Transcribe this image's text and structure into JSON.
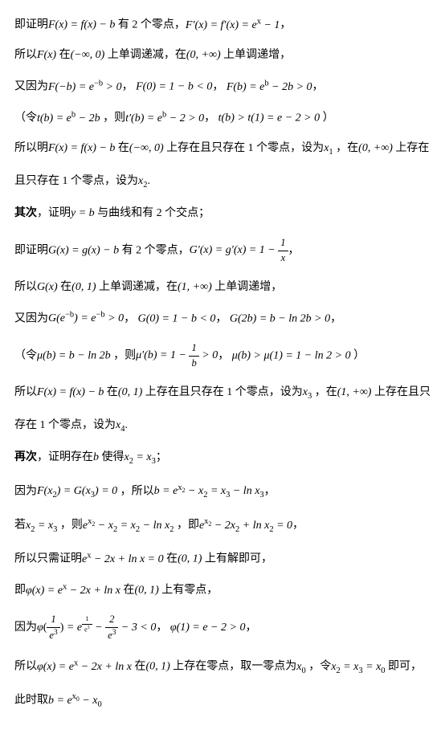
{
  "lines": {
    "l1": "即证明",
    "l1b": "有 2 个零点，",
    "l2": "所以",
    "l2b": "在",
    "l2c": "上单调递减，在",
    "l2d": "上单调递增，",
    "l3": "又因为",
    "l4": "（令",
    "l4b": "，则",
    "l4c": "）",
    "l5": "所以明",
    "l5b": "在",
    "l5c": "上存在且只存在 1 个零点，设为",
    "l5d": "，在",
    "l5e": "上存在",
    "l6": "且只存在 1 个零点，设为",
    "l7a": "其次",
    "l7b": "，证明",
    "l7c": "与曲线和有 2 个交点；",
    "l8": "即证明",
    "l8b": "有 2 个零点，",
    "l9": "所以",
    "l9b": "在",
    "l9c": "上单调递减，在",
    "l9d": "上单调递增，",
    "l10": "又因为",
    "l11": "（令",
    "l11b": "，则",
    "l11c": "）",
    "l12": "所以",
    "l12b": "在",
    "l12c": "上存在且只存在 1 个零点，设为",
    "l12d": "，在",
    "l12e": "上存在且只",
    "l13": "存在 1 个零点，设为",
    "l14a": "再次",
    "l14b": "，证明存在",
    "l14c": "使得",
    "l15": "因为",
    "l15b": "，所以",
    "l16": "若",
    "l16b": "，则",
    "l16c": "，即",
    "l17": "所以只需证明",
    "l17b": "在",
    "l17c": "上有解即可，",
    "l18": "即",
    "l18b": "在",
    "l18c": "上有零点，",
    "l19": "因为",
    "l20": "所以",
    "l20b": "在",
    "l20c": "上存在零点，取一零点为",
    "l20d": "，令",
    "l20e": "即可，",
    "l21": "此时取"
  },
  "math": {
    "Fx_eq": "F(x) = f(x) − b",
    "Fprime": "F′(x) = f′(x) = e",
    "minus1": " − 1",
    "Fx": "F(x)",
    "neginf0": "(−∞, 0)",
    "zeroinf": "(0, +∞)",
    "Fneg_b": "F(−b) = e",
    "supnegb": "−b",
    "gt0": " > 0",
    "F0": "F(0) = 1 − b < 0",
    "Fb": "F(b) = e",
    "m2b": " − 2b > 0",
    "tb": "t(b) = e",
    "m2b2": " − 2b",
    "tprime": "t′(b) = e",
    "m2": " − 2 > 0",
    "tbgt": "t(b) > t(1) = e − 2 > 0",
    "x1": "x",
    "x2": "x",
    "yb": "y = b",
    "Gx_eq": "G(x) = g(x) − b",
    "Gprime": "G′(x) = g′(x) = 1 − ",
    "Gx": "G(x)",
    "int01": "(0, 1)",
    "int1inf": "(1, +∞)",
    "Genegb": "G(e",
    "closep": ") = e",
    "G0": "G(0) = 1 − b < 0",
    "G2b": "G(2b) = b − ln 2b > 0",
    "mub": "μ(b) = b − ln 2b",
    "muprime": "μ′(b) = 1 − ",
    "mubgt": "μ(b) > μ(1) = 1 − ln 2 > 0",
    "x3": "x",
    "x4": "x",
    "b": "b",
    "x2eqx3": "x",
    "eq": " = x",
    "FGeq0": "F(x",
    "eqG": ") = G(x",
    "eq0": ") = 0",
    "beq": "b = e",
    "mx2": " − x",
    "eqx3": " = x",
    "mlnx3": " − ln x",
    "ex2": "e",
    "eqx2": " = x",
    "mlnx2": " − ln x",
    "m2x2": " − 2x",
    "plnx2": " + ln x",
    "exm2x": "e",
    "m2xplnx": " − 2x + ln x = 0",
    "phix": "φ(x) = e",
    "phi1e3": "φ",
    "eqe": " = e",
    "m3lt0": " − 3 < 0",
    "phi1": "φ(1) = e − 2 > 0",
    "x0": "x",
    "beqex0": "b = e",
    "mx0": " − x"
  }
}
